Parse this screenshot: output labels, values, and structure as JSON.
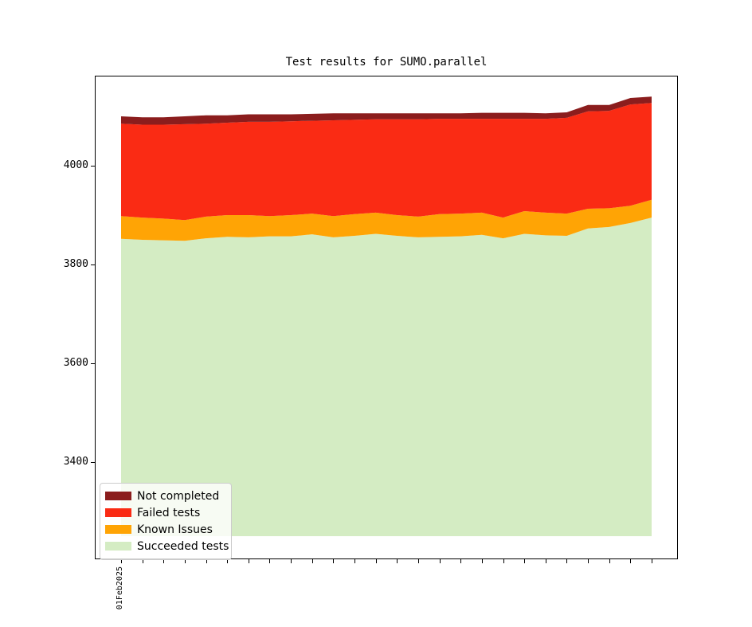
{
  "chart_data": {
    "type": "area",
    "title": "Test results for SUMO.parallel",
    "xlabel": "",
    "ylabel": "",
    "x_tick_label_first": "01Feb2025",
    "n_points": 26,
    "yticks": [
      3400,
      3600,
      3800,
      4000
    ],
    "ylim": [
      3203,
      4182
    ],
    "area_floor": 3250,
    "grid": false,
    "legend_position": "lower left",
    "stack_order_bottom_to_top": [
      "Succeeded tests",
      "Known Issues",
      "Failed tests",
      "Not completed"
    ],
    "series": [
      {
        "name": "Succeeded tests",
        "color": "#d4ecc3",
        "values": [
          3852,
          3850,
          3849,
          3848,
          3853,
          3856,
          3855,
          3857,
          3857,
          3861,
          3855,
          3858,
          3862,
          3858,
          3855,
          3856,
          3857,
          3860,
          3853,
          3862,
          3859,
          3858,
          3873,
          3876,
          3884,
          3895
        ]
      },
      {
        "name": "Known Issues",
        "color": "#ffa405",
        "values": [
          46,
          45,
          44,
          42,
          44,
          44,
          45,
          41,
          43,
          42,
          43,
          44,
          43,
          42,
          42,
          46,
          46,
          45,
          42,
          46,
          46,
          45,
          40,
          38,
          35,
          36
        ]
      },
      {
        "name": "Failed tests",
        "color": "#fa2b14",
        "values": [
          187,
          188,
          190,
          194,
          188,
          187,
          189,
          191,
          190,
          188,
          194,
          191,
          189,
          194,
          197,
          193,
          192,
          190,
          200,
          187,
          190,
          194,
          197,
          197,
          205,
          196
        ]
      },
      {
        "name": "Not completed",
        "color": "#8b1d1d",
        "values": [
          15,
          15,
          15,
          16,
          17,
          15,
          15,
          15,
          14,
          14,
          14,
          13,
          12,
          12,
          12,
          11,
          11,
          12,
          12,
          12,
          11,
          11,
          13,
          12,
          13,
          13
        ]
      }
    ]
  },
  "legend": {
    "entries": [
      {
        "label": "Not completed",
        "color": "#8b1d1d"
      },
      {
        "label": "Failed tests",
        "color": "#fa2b14"
      },
      {
        "label": "Known Issues",
        "color": "#ffa405"
      },
      {
        "label": "Succeeded tests",
        "color": "#d4ecc3"
      }
    ]
  }
}
